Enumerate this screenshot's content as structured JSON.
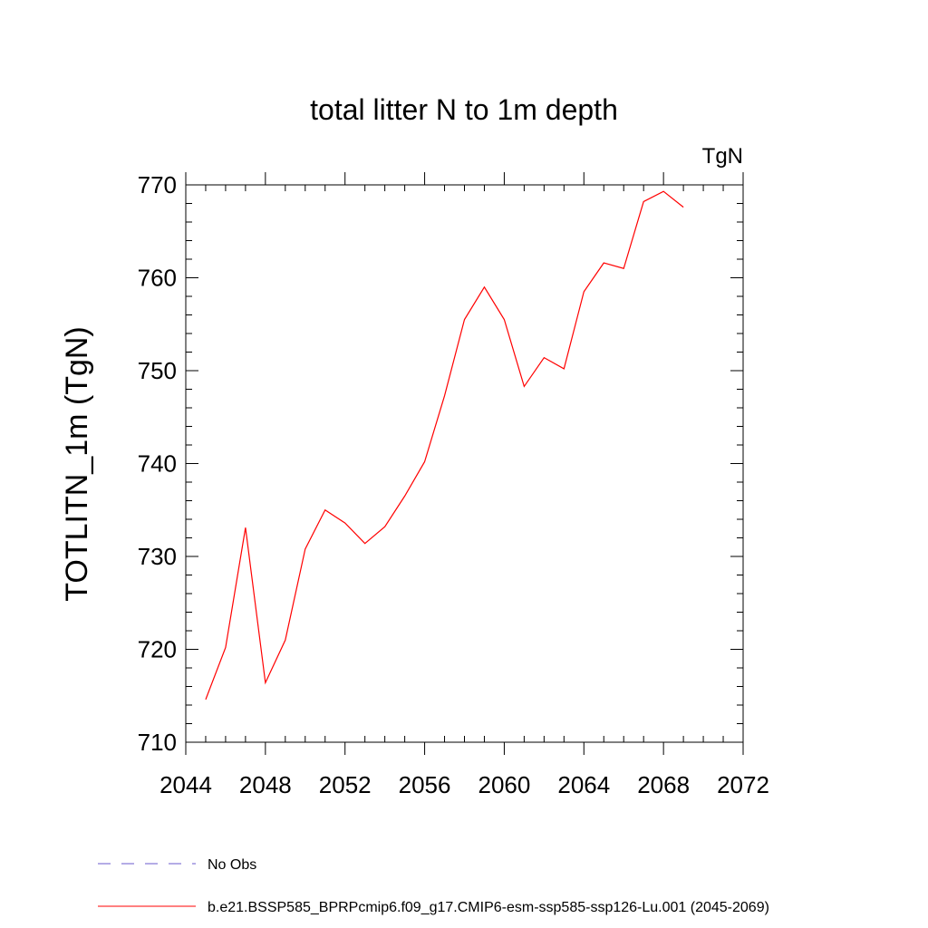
{
  "chart_data": {
    "type": "line",
    "title": "total litter N to 1m depth",
    "units_label": "TgN",
    "ylabel": "TOTLITN_1m  (TgN)",
    "xlabel": "",
    "xlim": [
      2044,
      2072
    ],
    "ylim": [
      710,
      770
    ],
    "x_ticks": [
      2044,
      2048,
      2052,
      2056,
      2060,
      2064,
      2068,
      2072
    ],
    "y_ticks": [
      710,
      720,
      730,
      740,
      750,
      760,
      770
    ],
    "x_tick_labels": [
      "2044",
      "2048",
      "2052",
      "2056",
      "2060",
      "2064",
      "2068",
      "2072"
    ],
    "y_tick_labels": [
      "710",
      "720",
      "730",
      "740",
      "750",
      "760",
      "770"
    ],
    "grid": false,
    "series": [
      {
        "name": "b.e21.BSSP585_BPRPcmip6.f09_g17.CMIP6-esm-ssp585-ssp126-Lu.001 (2045-2069)",
        "color": "#ff0000",
        "style": "solid",
        "x": [
          2045,
          2046,
          2047,
          2048,
          2049,
          2050,
          2051,
          2052,
          2053,
          2054,
          2055,
          2056,
          2057,
          2058,
          2059,
          2060,
          2061,
          2062,
          2063,
          2064,
          2065,
          2066,
          2067,
          2068,
          2069
        ],
        "y": [
          714.6,
          720.2,
          733.1,
          716.4,
          721.0,
          730.8,
          735.0,
          733.6,
          731.4,
          733.2,
          736.5,
          740.2,
          747.3,
          755.5,
          759.0,
          755.5,
          748.3,
          751.4,
          750.2,
          758.5,
          761.6,
          761.0,
          768.2,
          769.3,
          767.6
        ]
      }
    ],
    "legend": [
      {
        "label": "No Obs",
        "color": "#6a5acd",
        "style": "dashed"
      },
      {
        "label": "b.e21.BSSP585_BPRPcmip6.f09_g17.CMIP6-esm-ssp585-ssp126-Lu.001 (2045-2069)",
        "color": "#ff0000",
        "style": "solid"
      }
    ],
    "legend_position": "bottom-left"
  }
}
